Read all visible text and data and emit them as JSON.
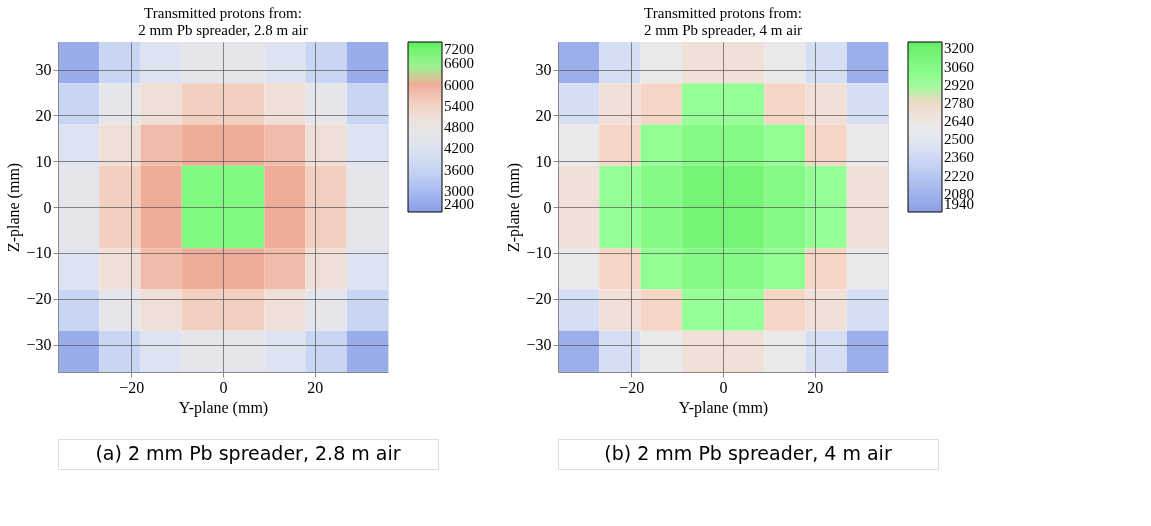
{
  "chart_data": [
    {
      "type": "heatmap",
      "title": [
        "Transmitted protons from:",
        "2 mm Pb spreader, 2.8 m air"
      ],
      "xlabel": "Y-plane (mm)",
      "ylabel": "Z-plane (mm)",
      "annotations": [
        "(a) 2 mm Pb spreader, 2.8 m air"
      ],
      "x": [
        -31.5,
        -22.5,
        -13.5,
        -4.5,
        4.5,
        13.5,
        22.5,
        31.5
      ],
      "y": [
        31.5,
        22.5,
        13.5,
        4.5,
        -4.5,
        -13.5,
        -22.5,
        -31.5
      ],
      "cells": [
        [
          2700,
          3600,
          4200,
          4500,
          4500,
          4200,
          3600,
          2700
        ],
        [
          3600,
          4500,
          5100,
          5500,
          5500,
          5100,
          4500,
          3600
        ],
        [
          4200,
          5100,
          5800,
          6000,
          6000,
          5800,
          5100,
          4200
        ],
        [
          4500,
          5500,
          6000,
          6800,
          6800,
          6000,
          5500,
          4500
        ],
        [
          4500,
          5500,
          6000,
          6800,
          6800,
          6000,
          5500,
          4500
        ],
        [
          4200,
          5100,
          5800,
          6000,
          6000,
          5800,
          5100,
          4200
        ],
        [
          3600,
          4500,
          5100,
          5500,
          5500,
          5100,
          4500,
          3600
        ],
        [
          2700,
          3600,
          4200,
          4500,
          4500,
          4200,
          3600,
          2700
        ]
      ],
      "xlim": [
        -36,
        36
      ],
      "ylim": [
        -36,
        36
      ],
      "xticks": [
        -20,
        0,
        20
      ],
      "yticks": [
        -30,
        -20,
        -10,
        0,
        10,
        20,
        30
      ],
      "clim": [
        2400,
        7200
      ],
      "cticks": [
        2400,
        3000,
        3600,
        4200,
        4800,
        5400,
        6000,
        6600,
        7200
      ],
      "colors": [
        "#8b9ee6",
        "#a9bbf0",
        "#c9d6f3",
        "#dde3f1",
        "#ebe8e6",
        "#f3d6c8",
        "#efad99",
        "#90ff90",
        "#60f060"
      ],
      "grid": true
    },
    {
      "type": "heatmap",
      "title": [
        "Transmitted protons from:",
        "2 mm Pb spreader, 4 m air"
      ],
      "xlabel": "Y-plane (mm)",
      "ylabel": "Z-plane (mm)",
      "annotations": [
        "(b) 2 mm Pb spreader, 4 m air"
      ],
      "x": [
        -31.5,
        -22.5,
        -13.5,
        -4.5,
        4.5,
        13.5,
        22.5,
        31.5
      ],
      "y": [
        31.5,
        22.5,
        13.5,
        4.5,
        -4.5,
        -13.5,
        -22.5,
        -31.5
      ],
      "cells": [
        [
          2050,
          2400,
          2600,
          2700,
          2700,
          2600,
          2400,
          2050
        ],
        [
          2400,
          2700,
          2780,
          2930,
          2930,
          2780,
          2700,
          2400
        ],
        [
          2600,
          2780,
          2960,
          3050,
          3050,
          2960,
          2780,
          2600
        ],
        [
          2700,
          2930,
          3050,
          3150,
          3150,
          3050,
          2930,
          2700
        ],
        [
          2700,
          2930,
          3050,
          3150,
          3150,
          3050,
          2930,
          2700
        ],
        [
          2600,
          2780,
          2960,
          3050,
          3050,
          2960,
          2780,
          2600
        ],
        [
          2400,
          2700,
          2780,
          2930,
          2930,
          2780,
          2700,
          2400
        ],
        [
          2050,
          2400,
          2600,
          2700,
          2700,
          2600,
          2400,
          2050
        ]
      ],
      "xlim": [
        -36,
        36
      ],
      "ylim": [
        -36,
        36
      ],
      "xticks": [
        -20,
        0,
        20
      ],
      "yticks": [
        -30,
        -20,
        -10,
        0,
        10,
        20,
        30
      ],
      "clim": [
        1940,
        3250
      ],
      "cticks": [
        1940,
        2080,
        2220,
        2360,
        2500,
        2640,
        2780,
        2920,
        3060,
        3200
      ],
      "colors": [
        "#8b9ee6",
        "#a0b3ec",
        "#b7c7f1",
        "#cfdaf4",
        "#e3e8f1",
        "#ede9e6",
        "#f5d5c6",
        "#98ff98",
        "#84fa84",
        "#6ef06e",
        "#66ec66"
      ],
      "grid": true
    }
  ]
}
